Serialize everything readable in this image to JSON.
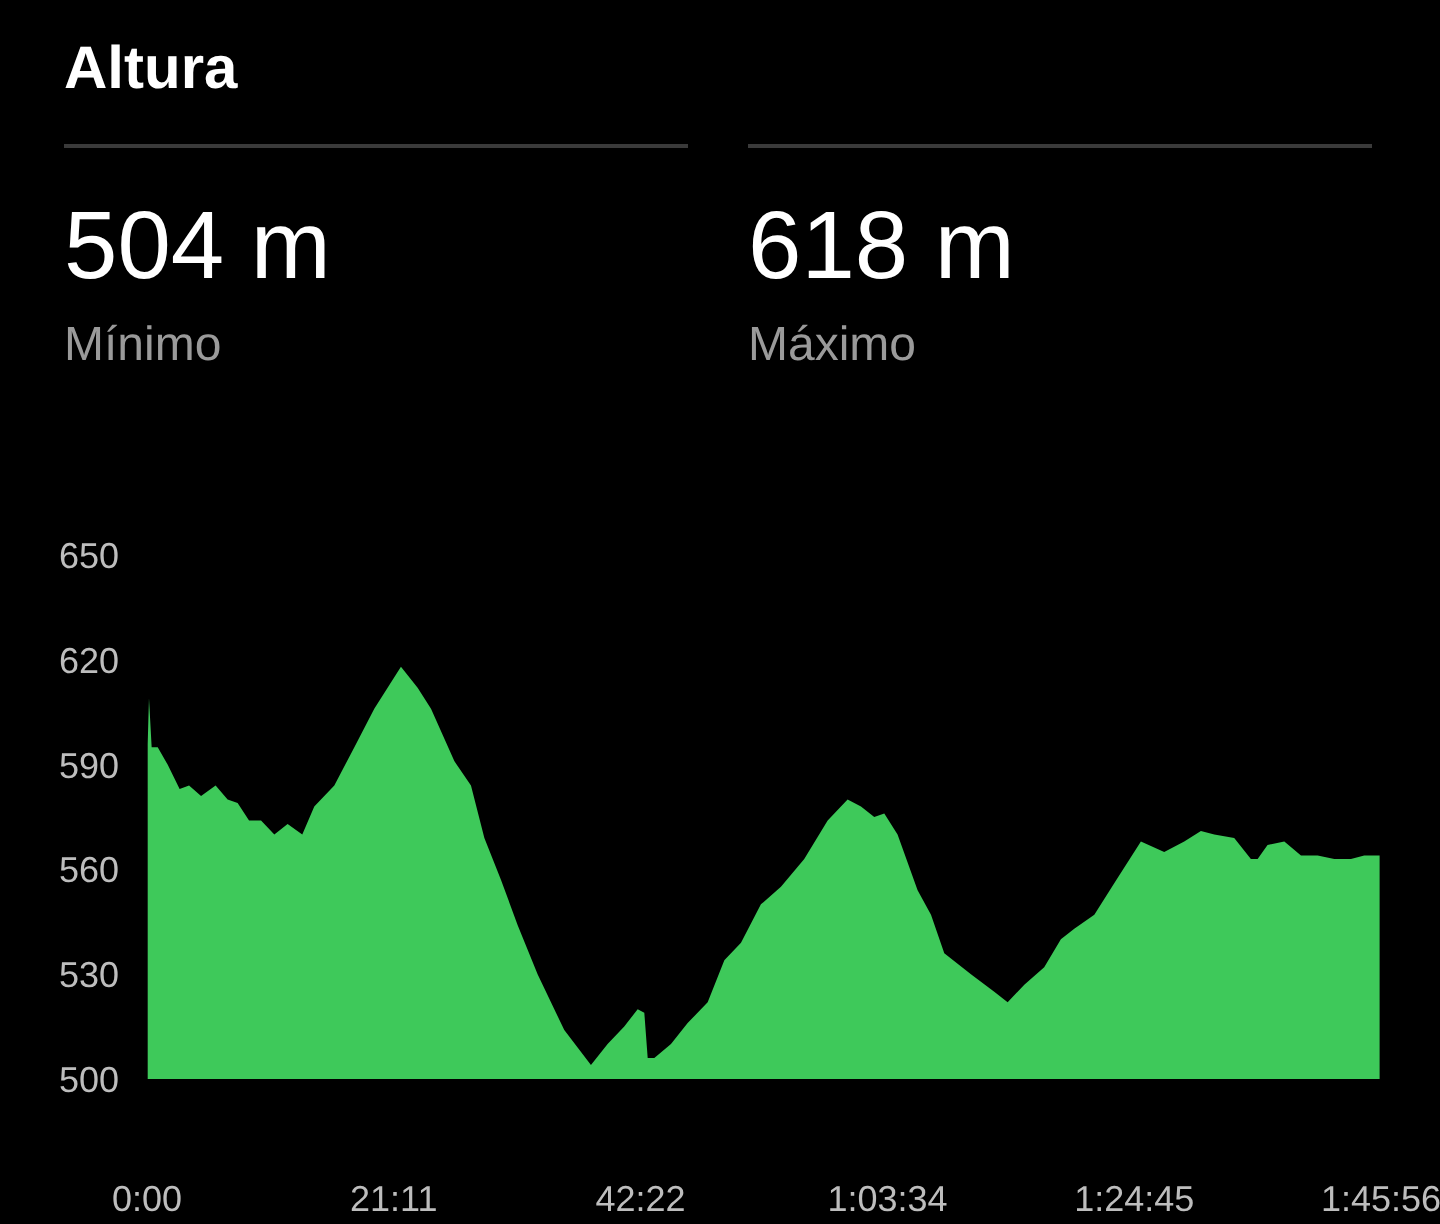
{
  "chart_data": {
    "type": "area",
    "title": "Altura",
    "annotations": [
      "504 m",
      "Mínimo",
      "618 m",
      "Máximo"
    ],
    "x": [
      0.06,
      0.17,
      0.4,
      0.92,
      1.77,
      2.8,
      3.61,
      4.64,
      5.89,
      6.92,
      7.78,
      8.76,
      9.79,
      10.93,
      12.07,
      13.33,
      14.36,
      16.08,
      17.8,
      19.51,
      21.8,
      23.23,
      24.38,
      26.38,
      27.81,
      28.96,
      30.39,
      31.82,
      33.53,
      35.82,
      38.11,
      39.54,
      40.97,
      42.12,
      42.69,
      42.98,
      43.55,
      44.98,
      46.41,
      48.13,
      49.56,
      50.99,
      52.7,
      54.42,
      56.42,
      58.43,
      60.14,
      61.29,
      62.43,
      63.29,
      64.43,
      66.15,
      67.3,
      68.44,
      70.73,
      72.73,
      73.88,
      75.31,
      77.02,
      78.45,
      79.6,
      81.32,
      83.03,
      85.32,
      87.32,
      89.04,
      90.47,
      91.62,
      93.33,
      94.76,
      95.34,
      96.19,
      97.63,
      99.06,
      100.49,
      101.92,
      103.35,
      104.49,
      105.81
    ],
    "series": [
      {
        "color": "#3ec95a",
        "values": [
          596,
          609,
          595,
          595,
          590,
          583,
          584,
          581,
          584,
          580,
          579,
          574,
          574,
          570,
          573,
          570,
          578,
          584,
          595,
          606,
          618,
          612,
          606,
          591,
          584,
          569,
          557,
          544,
          530,
          514,
          504,
          510,
          515,
          520,
          519,
          506,
          506,
          510,
          516,
          522,
          534,
          539,
          550,
          555,
          563,
          574,
          580,
          578,
          575,
          576,
          570,
          554,
          547,
          536,
          530,
          525,
          522,
          527,
          532,
          540,
          543,
          547,
          556,
          568,
          565,
          568,
          571,
          570,
          569,
          563,
          563,
          567,
          568,
          564,
          564,
          563,
          563,
          564,
          564
        ]
      }
    ],
    "xlim": [
      0,
      105.93
    ],
    "ylim": [
      500,
      650
    ],
    "xticks": [
      {
        "value": 0,
        "label": "0:00"
      },
      {
        "value": 21.18,
        "label": "21:11"
      },
      {
        "value": 42.37,
        "label": "42:22"
      },
      {
        "value": 63.57,
        "label": "1:03:34"
      },
      {
        "value": 84.75,
        "label": "1:24:45"
      },
      {
        "value": 105.93,
        "label": "1:45:56"
      }
    ],
    "yticks": [
      500,
      530,
      560,
      590,
      620,
      650
    ]
  }
}
